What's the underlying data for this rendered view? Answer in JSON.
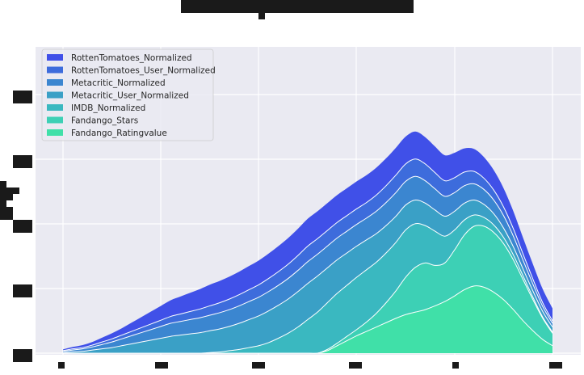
{
  "chart_data": {
    "type": "area",
    "stacked": true,
    "title": "",
    "xlabel": "",
    "ylabel": "",
    "grid": true,
    "legend_position": "top-left",
    "x": [
      0,
      1,
      2,
      3,
      4,
      5,
      6,
      7,
      8,
      9,
      10,
      11,
      12,
      13,
      14,
      15,
      16,
      17,
      18,
      19,
      20,
      21,
      22,
      23,
      24,
      25,
      26,
      27,
      28,
      29,
      30,
      31,
      32,
      33,
      34,
      35,
      36,
      37,
      38,
      39,
      40,
      41,
      42,
      43,
      44,
      45,
      46,
      47,
      48,
      49,
      50
    ],
    "ylim": [
      0,
      4.7
    ],
    "series": [
      {
        "name": "Fandango_Ratingvalue",
        "color": "#40e0a8",
        "values": [
          0,
          0,
          0,
          0,
          0,
          0,
          0,
          0,
          0,
          0,
          0,
          0,
          0,
          0,
          0,
          0,
          0,
          0,
          0,
          0,
          0,
          0,
          0,
          0,
          0,
          0,
          0,
          0.04,
          0.12,
          0.2,
          0.28,
          0.35,
          0.42,
          0.49,
          0.56,
          0.62,
          0.66,
          0.7,
          0.76,
          0.83,
          0.92,
          1.02,
          1.08,
          1.06,
          0.98,
          0.86,
          0.7,
          0.52,
          0.36,
          0.22,
          0.12
        ]
      },
      {
        "name": "Fandango_Stars",
        "color": "#3dd0b5",
        "values": [
          0,
          0,
          0,
          0,
          0,
          0,
          0,
          0,
          0,
          0,
          0,
          0,
          0,
          0,
          0,
          0,
          0,
          0,
          0,
          0,
          0,
          0,
          0,
          0,
          0,
          0,
          0,
          0.02,
          0.04,
          0.07,
          0.1,
          0.15,
          0.22,
          0.32,
          0.44,
          0.6,
          0.72,
          0.75,
          0.65,
          0.62,
          0.74,
          0.88,
          0.96,
          0.98,
          0.96,
          0.9,
          0.8,
          0.66,
          0.5,
          0.34,
          0.2
        ]
      },
      {
        "name": "IMDB_Normalized",
        "color": "#3ab8c0",
        "values": [
          0,
          0,
          0,
          0,
          0,
          0,
          0,
          0,
          0,
          0,
          0,
          0,
          0,
          0,
          0,
          0.01,
          0.02,
          0.04,
          0.06,
          0.09,
          0.12,
          0.17,
          0.24,
          0.32,
          0.42,
          0.54,
          0.66,
          0.75,
          0.8,
          0.82,
          0.84,
          0.84,
          0.82,
          0.8,
          0.78,
          0.76,
          0.7,
          0.6,
          0.55,
          0.43,
          0.32,
          0.24,
          0.18,
          0.14,
          0.12,
          0.1,
          0.08,
          0.06,
          0.04,
          0.02,
          0.02
        ]
      },
      {
        "name": "Metacritic_User_Normalized",
        "color": "#3aa0c6",
        "values": [
          0.01,
          0.02,
          0.03,
          0.05,
          0.07,
          0.09,
          0.12,
          0.15,
          0.18,
          0.21,
          0.24,
          0.27,
          0.29,
          0.31,
          0.33,
          0.35,
          0.37,
          0.39,
          0.42,
          0.45,
          0.48,
          0.51,
          0.53,
          0.55,
          0.57,
          0.58,
          0.58,
          0.56,
          0.54,
          0.52,
          0.5,
          0.48,
          0.46,
          0.44,
          0.42,
          0.4,
          0.38,
          0.36,
          0.34,
          0.32,
          0.3,
          0.27,
          0.24,
          0.21,
          0.18,
          0.15,
          0.13,
          0.11,
          0.1,
          0.09,
          0.08
        ]
      },
      {
        "name": "Metacritic_Normalized",
        "color": "#3b86d0",
        "values": [
          0.02,
          0.03,
          0.04,
          0.05,
          0.07,
          0.09,
          0.11,
          0.13,
          0.15,
          0.17,
          0.19,
          0.21,
          0.22,
          0.23,
          0.24,
          0.25,
          0.26,
          0.27,
          0.28,
          0.29,
          0.3,
          0.31,
          0.32,
          0.33,
          0.34,
          0.35,
          0.35,
          0.35,
          0.35,
          0.35,
          0.35,
          0.35,
          0.36,
          0.37,
          0.38,
          0.38,
          0.38,
          0.36,
          0.34,
          0.32,
          0.3,
          0.28,
          0.26,
          0.24,
          0.22,
          0.2,
          0.17,
          0.14,
          0.11,
          0.08,
          0.06
        ]
      },
      {
        "name": "RottenTomatoes_User_Normalized",
        "color": "#3d6cdc",
        "values": [
          0.01,
          0.02,
          0.02,
          0.03,
          0.04,
          0.05,
          0.06,
          0.07,
          0.08,
          0.09,
          0.1,
          0.11,
          0.12,
          0.13,
          0.14,
          0.15,
          0.16,
          0.17,
          0.18,
          0.19,
          0.2,
          0.21,
          0.22,
          0.23,
          0.24,
          0.25,
          0.25,
          0.25,
          0.25,
          0.25,
          0.25,
          0.25,
          0.26,
          0.27,
          0.28,
          0.28,
          0.28,
          0.27,
          0.26,
          0.25,
          0.24,
          0.22,
          0.2,
          0.18,
          0.16,
          0.14,
          0.12,
          0.1,
          0.08,
          0.06,
          0.04
        ]
      },
      {
        "name": "RottenTomatoes_Normalized",
        "color": "#4050e8",
        "values": [
          0.02,
          0.03,
          0.04,
          0.05,
          0.07,
          0.09,
          0.11,
          0.14,
          0.17,
          0.2,
          0.23,
          0.26,
          0.28,
          0.3,
          0.32,
          0.34,
          0.35,
          0.36,
          0.37,
          0.38,
          0.39,
          0.4,
          0.41,
          0.42,
          0.43,
          0.44,
          0.44,
          0.44,
          0.44,
          0.44,
          0.44,
          0.44,
          0.44,
          0.44,
          0.44,
          0.44,
          0.44,
          0.43,
          0.42,
          0.41,
          0.4,
          0.38,
          0.36,
          0.34,
          0.32,
          0.3,
          0.28,
          0.26,
          0.24,
          0.22,
          0.2
        ]
      }
    ],
    "legend_order": [
      "RottenTomatoes_Normalized",
      "RottenTomatoes_User_Normalized",
      "Metacritic_Normalized",
      "Metacritic_User_Normalized",
      "IMDB_Normalized",
      "Fandango_Stars",
      "Fandango_Ratingvalue"
    ]
  },
  "colors": {
    "plot_background": "#eaeaf2",
    "grid": "#ffffff",
    "separator": "#ffffff"
  }
}
